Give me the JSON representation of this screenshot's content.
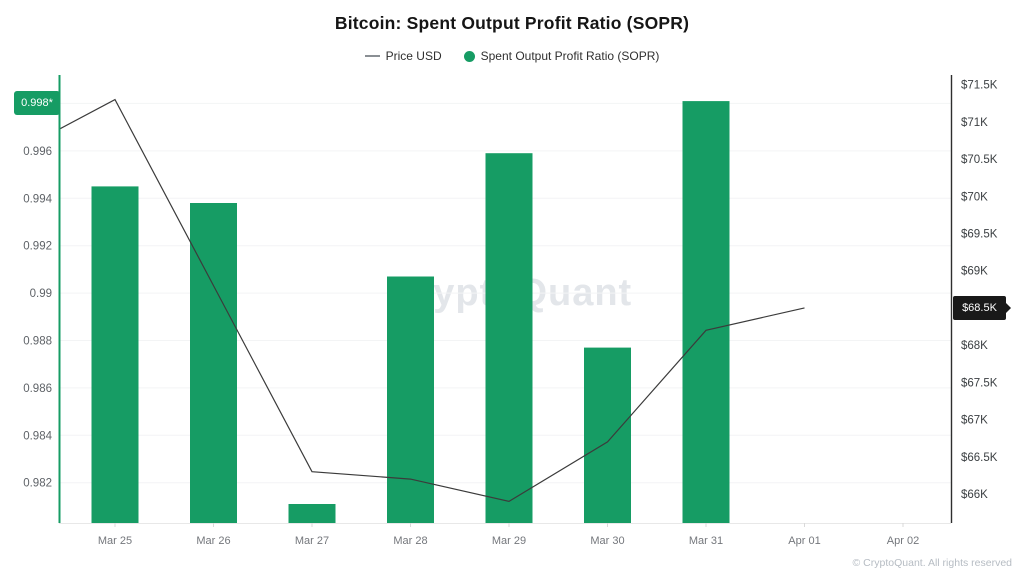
{
  "header": {
    "title": "Bitcoin: Spent Output Profit Ratio (SOPR)"
  },
  "watermark": "CryptoQuant",
  "footer": {
    "copyright": "© CryptoQuant. All rights reserved"
  },
  "chart_data": {
    "type": "combo",
    "title": "Bitcoin: Spent Output Profit Ratio (SOPR)",
    "legend_position": "top-center",
    "grid": "horizontal",
    "categories": [
      "Mar 25",
      "Mar 26",
      "Mar 27",
      "Mar 28",
      "Mar 29",
      "Mar 30",
      "Mar 31",
      "Apr 01",
      "Apr 02"
    ],
    "series": [
      {
        "name": "Price USD",
        "type": "line",
        "axis": "right",
        "color": "#3b3b3b",
        "unit": "K USD",
        "values": [
          71.3,
          68.8,
          66.3,
          66.2,
          65.9,
          66.7,
          68.2,
          68.5,
          null
        ],
        "clipped_start_value": 70.9
      },
      {
        "name": "Spent Output Profit Ratio (SOPR)",
        "type": "bar",
        "axis": "left",
        "color": "#169c64",
        "values": [
          0.9945,
          0.9938,
          0.9811,
          0.9907,
          0.9959,
          0.9877,
          0.9981,
          null,
          null
        ]
      }
    ],
    "left_axis": {
      "ticks": [
        0.996,
        0.994,
        0.992,
        0.99,
        0.988,
        0.986,
        0.984,
        0.982
      ],
      "range": [
        0.9803,
        0.9992
      ],
      "latest_badge": {
        "label": "0.998*",
        "value": 0.998,
        "bg": "#169c64"
      }
    },
    "right_axis": {
      "ticks": [
        {
          "label": "$71.5K",
          "value": 71.5
        },
        {
          "label": "$71K",
          "value": 71
        },
        {
          "label": "$70.5K",
          "value": 70.5
        },
        {
          "label": "$70K",
          "value": 70
        },
        {
          "label": "$69.5K",
          "value": 69.5
        },
        {
          "label": "$69K",
          "value": 69
        },
        {
          "label": "$68K",
          "value": 68
        },
        {
          "label": "$67.5K",
          "value": 67.5
        },
        {
          "label": "$67K",
          "value": 67
        },
        {
          "label": "$66.5K",
          "value": 66.5
        },
        {
          "label": "$66K",
          "value": 66
        }
      ],
      "range": [
        65.61,
        71.63
      ],
      "latest_badge": {
        "label": "$68.5K",
        "value": 68.5,
        "bg": "#191919"
      }
    }
  }
}
